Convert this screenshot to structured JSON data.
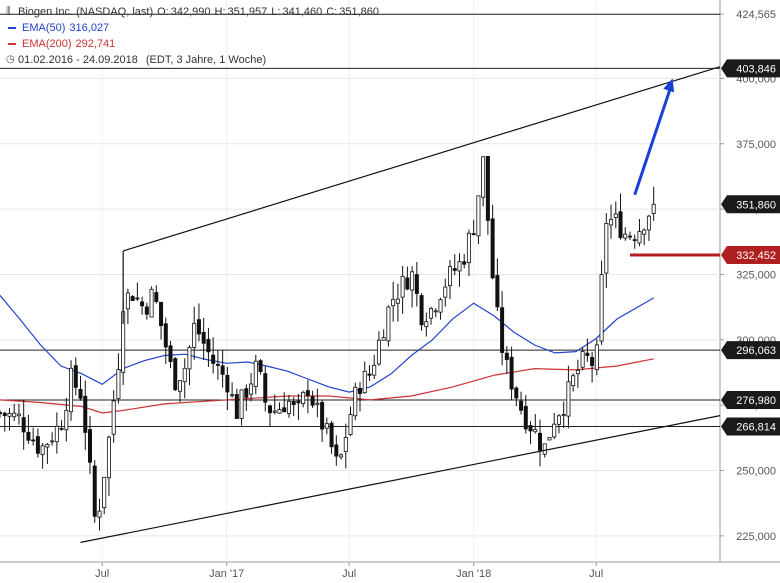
{
  "header": {
    "title": "Biogen Inc. (NASDAQ, last)",
    "open_label": "O:",
    "open": "342,990",
    "high_label": "H:",
    "high": "351,957",
    "low_label": "L:",
    "low": "341,460",
    "close_label": "C:",
    "close": "351,860",
    "ema50_label": "EMA(50)",
    "ema50_value": "316,027",
    "ema50_color": "#2244cc",
    "ema200_label": "EMA(200)",
    "ema200_value": "292,741",
    "ema200_color": "#cc3333",
    "period": "01.02.2016 - 24.09.2018",
    "period_note": "(EDT, 3 Jahre, 1 Woche)"
  },
  "chart_data": {
    "type": "candlestick",
    "ylim": [
      215000,
      430000
    ],
    "y_ticks": [
      {
        "value": 225000,
        "label": "225,000"
      },
      {
        "value": 250000,
        "label": "250,000"
      },
      {
        "value": 275000,
        "label": "275,000"
      },
      {
        "value": 300000,
        "label": "300,000"
      },
      {
        "value": 325000,
        "label": "325,000"
      },
      {
        "value": 350000,
        "label": "350,000"
      },
      {
        "value": 375000,
        "label": "375,000"
      },
      {
        "value": 400000,
        "label": "400,000"
      },
      {
        "value": 424565,
        "label": "424,565"
      }
    ],
    "x_ticks": [
      {
        "date": "2016-07-01",
        "label": "Jul"
      },
      {
        "date": "2017-01-01",
        "label": "Jan '17"
      },
      {
        "date": "2017-07-01",
        "label": "Jul"
      },
      {
        "date": "2018-01-01",
        "label": "Jan '18"
      },
      {
        "date": "2018-07-01",
        "label": "Jul"
      }
    ],
    "x_range": [
      "2016-02-01",
      "2018-12-31"
    ],
    "horizontal_levels": [
      {
        "value": 403846,
        "label": "403,846",
        "style": "dark"
      },
      {
        "value": 296063,
        "label": "296,063",
        "style": "dark"
      },
      {
        "value": 276980,
        "label": "276,980",
        "style": "dark"
      },
      {
        "value": 266814,
        "label": "266,814",
        "style": "dark"
      },
      {
        "value": 351860,
        "label": "351,860",
        "style": "dark"
      },
      {
        "value": 332452,
        "label": "332,452",
        "style": "red"
      }
    ],
    "channel_upper": [
      [
        "2016-08-01",
        334000
      ],
      [
        "2018-12-31",
        404500
      ]
    ],
    "channel_lower": [
      [
        "2016-05-30",
        222500
      ],
      [
        "2018-12-31",
        271000
      ]
    ],
    "red_support": {
      "from": "2018-08-20",
      "to": "2018-12-31",
      "value": 332452
    },
    "arrow": {
      "from": [
        "2018-08-27",
        355500
      ],
      "to": [
        "2018-10-22",
        400000
      ],
      "color": "#1a3fd6"
    },
    "ema50": [
      [
        "2016-02-01",
        317000
      ],
      [
        "2016-03-01",
        308000
      ],
      [
        "2016-04-01",
        298000
      ],
      [
        "2016-05-01",
        290000
      ],
      [
        "2016-06-01",
        287000
      ],
      [
        "2016-07-01",
        283000
      ],
      [
        "2016-08-01",
        289000
      ],
      [
        "2016-09-01",
        292000
      ],
      [
        "2016-10-01",
        294000
      ],
      [
        "2016-11-01",
        294500
      ],
      [
        "2016-12-01",
        292500
      ],
      [
        "2017-01-01",
        291000
      ],
      [
        "2017-02-01",
        291500
      ],
      [
        "2017-03-01",
        290000
      ],
      [
        "2017-04-01",
        288000
      ],
      [
        "2017-05-01",
        285000
      ],
      [
        "2017-06-01",
        282000
      ],
      [
        "2017-07-01",
        280000
      ],
      [
        "2017-08-01",
        282000
      ],
      [
        "2017-09-01",
        287000
      ],
      [
        "2017-10-01",
        294000
      ],
      [
        "2017-11-01",
        300000
      ],
      [
        "2017-12-01",
        308000
      ],
      [
        "2018-01-01",
        314000
      ],
      [
        "2018-02-01",
        309000
      ],
      [
        "2018-03-01",
        303000
      ],
      [
        "2018-04-01",
        298000
      ],
      [
        "2018-05-01",
        295000
      ],
      [
        "2018-06-01",
        295500
      ],
      [
        "2018-07-01",
        300500
      ],
      [
        "2018-08-01",
        308000
      ],
      [
        "2018-09-24",
        316027
      ]
    ],
    "ema200": [
      [
        "2016-02-01",
        277000
      ],
      [
        "2016-04-01",
        276000
      ],
      [
        "2016-06-01",
        274500
      ],
      [
        "2016-07-01",
        272000
      ],
      [
        "2016-08-01",
        273000
      ],
      [
        "2016-10-01",
        275500
      ],
      [
        "2016-12-01",
        276500
      ],
      [
        "2017-02-01",
        277500
      ],
      [
        "2017-04-01",
        278500
      ],
      [
        "2017-06-01",
        278500
      ],
      [
        "2017-08-01",
        277000
      ],
      [
        "2017-10-01",
        278500
      ],
      [
        "2017-12-01",
        282000
      ],
      [
        "2018-02-01",
        286500
      ],
      [
        "2018-04-01",
        289000
      ],
      [
        "2018-06-01",
        288500
      ],
      [
        "2018-08-01",
        290000
      ],
      [
        "2018-09-24",
        292741
      ]
    ],
    "weekly_close": [
      [
        "2016-02-01",
        272000
      ],
      [
        "2016-03-01",
        270000
      ],
      [
        "2016-04-01",
        258000
      ],
      [
        "2016-05-01",
        268000
      ],
      [
        "2016-05-16",
        285000
      ],
      [
        "2016-06-01",
        279000
      ],
      [
        "2016-06-20",
        232000
      ],
      [
        "2016-06-27",
        237000
      ],
      [
        "2016-07-11",
        262000
      ],
      [
        "2016-07-25",
        292000
      ],
      [
        "2016-08-01",
        315000
      ],
      [
        "2016-08-15",
        318000
      ],
      [
        "2016-09-01",
        312000
      ],
      [
        "2016-09-15",
        318000
      ],
      [
        "2016-10-01",
        300000
      ],
      [
        "2016-10-15",
        284000
      ],
      [
        "2016-11-01",
        290000
      ],
      [
        "2016-11-15",
        306000
      ],
      [
        "2016-12-01",
        297000
      ],
      [
        "2016-12-15",
        290000
      ],
      [
        "2017-01-01",
        285000
      ],
      [
        "2017-01-15",
        272000
      ],
      [
        "2017-02-01",
        282000
      ],
      [
        "2017-02-15",
        290000
      ],
      [
        "2017-03-01",
        274000
      ],
      [
        "2017-03-15",
        273000
      ],
      [
        "2017-04-01",
        277000
      ],
      [
        "2017-04-15",
        271000
      ],
      [
        "2017-05-01",
        282000
      ],
      [
        "2017-05-15",
        272000
      ],
      [
        "2017-06-01",
        262000
      ],
      [
        "2017-06-15",
        250000
      ],
      [
        "2017-07-01",
        270000
      ],
      [
        "2017-07-15",
        283000
      ],
      [
        "2017-08-01",
        287000
      ],
      [
        "2017-08-15",
        300000
      ],
      [
        "2017-09-01",
        315000
      ],
      [
        "2017-09-15",
        320000
      ],
      [
        "2017-10-01",
        326000
      ],
      [
        "2017-10-15",
        310000
      ],
      [
        "2017-11-01",
        312000
      ],
      [
        "2017-11-15",
        320000
      ],
      [
        "2017-12-01",
        326000
      ],
      [
        "2017-12-15",
        330000
      ],
      [
        "2018-01-01",
        344000
      ],
      [
        "2018-01-15",
        368000
      ],
      [
        "2018-02-01",
        315000
      ],
      [
        "2018-02-15",
        292000
      ],
      [
        "2018-03-01",
        282000
      ],
      [
        "2018-03-15",
        272000
      ],
      [
        "2018-04-01",
        265000
      ],
      [
        "2018-04-15",
        258000
      ],
      [
        "2018-05-01",
        271000
      ],
      [
        "2018-05-15",
        276000
      ],
      [
        "2018-06-01",
        287000
      ],
      [
        "2018-06-15",
        293000
      ],
      [
        "2018-07-01",
        290000
      ],
      [
        "2018-07-15",
        346000
      ],
      [
        "2018-08-01",
        345000
      ],
      [
        "2018-08-15",
        340000
      ],
      [
        "2018-09-01",
        342000
      ],
      [
        "2018-09-24",
        351860
      ]
    ]
  }
}
